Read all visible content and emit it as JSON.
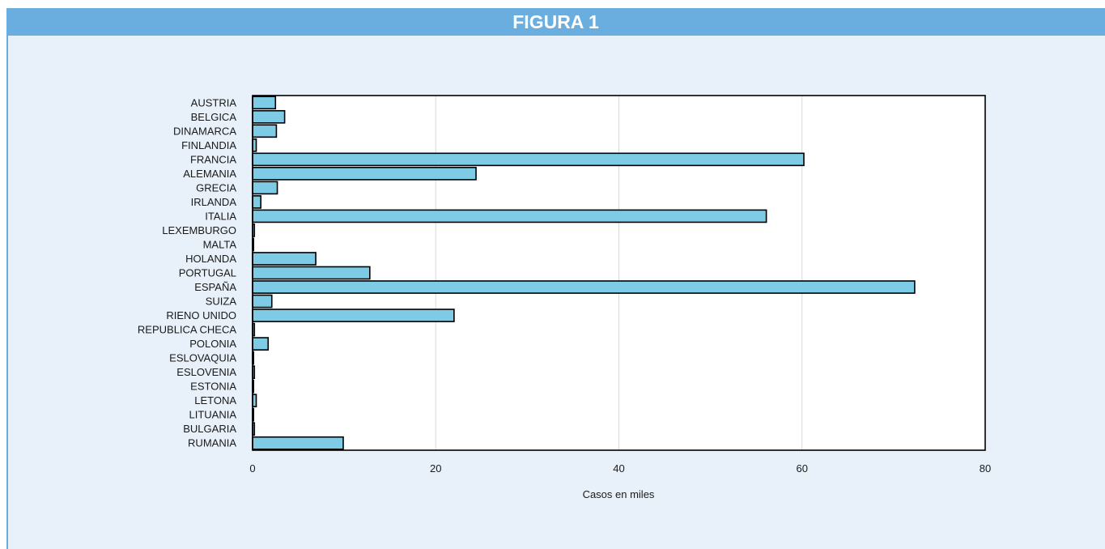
{
  "header": {
    "title": "FIGURA 1"
  },
  "chart_data": {
    "type": "bar",
    "orientation": "horizontal",
    "title": "",
    "xlabel": "Casos en miles",
    "ylabel": "",
    "xlim": [
      0,
      80
    ],
    "xticks": [
      0,
      20,
      40,
      60,
      80
    ],
    "grid": true,
    "categories": [
      "AUSTRIA",
      "BELGICA",
      "DINAMARCA",
      "FINLANDIA",
      "FRANCIA",
      "ALEMANIA",
      "GRECIA",
      "IRLANDA",
      "ITALIA",
      "LEXEMBURGO",
      "MALTA",
      "HOLANDA",
      "PORTUGAL",
      "ESPAÑA",
      "SUIZA",
      "RIENO UNIDO",
      "REPUBLICA CHECA",
      "POLONIA",
      "ESLOVAQUIA",
      "ESLOVENIA",
      "ESTONIA",
      "LETONA",
      "LITUANIA",
      "BULGARIA",
      "RUMANIA"
    ],
    "values": [
      2.5,
      3.5,
      2.6,
      0.4,
      60.2,
      24.4,
      2.7,
      0.9,
      56.1,
      0.2,
      0.1,
      6.9,
      12.8,
      72.3,
      2.1,
      22.0,
      0.2,
      1.7,
      0.1,
      0.2,
      0.1,
      0.4,
      0.1,
      0.2,
      9.9
    ],
    "bar_color": "#7ecbe6",
    "bar_edge_color": "#000000"
  }
}
